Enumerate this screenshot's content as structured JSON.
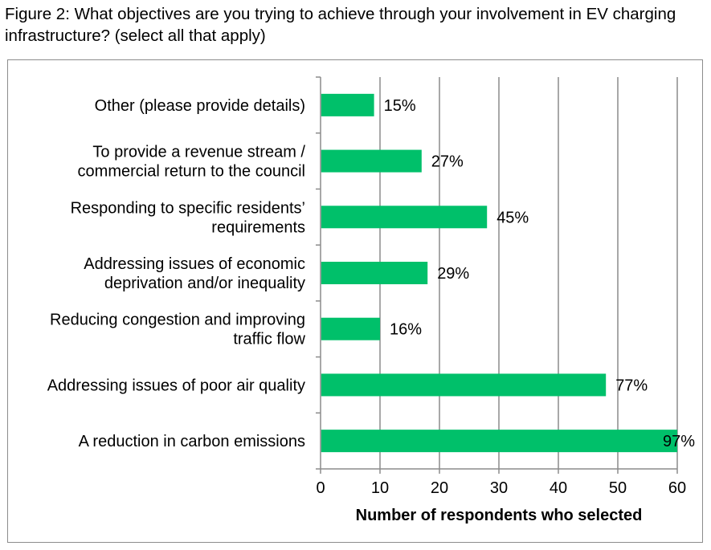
{
  "figure": {
    "title": "Figure 2: What objectives are you trying to achieve through your involvement in EV charging infrastructure? (select all that apply)"
  },
  "chart_data": {
    "type": "bar",
    "orientation": "horizontal",
    "title": "",
    "xlabel": "Number of respondents who selected",
    "ylabel": "",
    "xlim": [
      0,
      60
    ],
    "xticks": [
      0,
      10,
      20,
      30,
      40,
      50,
      60
    ],
    "grid": "vertical",
    "legend": "none",
    "bar_color": "#00c06a",
    "categories": [
      [
        "Other (please provide details)"
      ],
      [
        "To provide a revenue stream /",
        "commercial return to the council"
      ],
      [
        "Responding to specific residents’",
        "requirements"
      ],
      [
        "Addressing issues of economic",
        "deprivation and/or inequality"
      ],
      [
        "Reducing congestion and improving",
        "traffic flow"
      ],
      [
        "Addressing issues of poor air quality"
      ],
      [
        "A reduction in carbon emissions"
      ]
    ],
    "values": [
      9,
      17,
      28,
      18,
      10,
      48,
      60
    ],
    "data_labels": [
      "15%",
      "27%",
      "45%",
      "29%",
      "16%",
      "77%",
      "97%"
    ]
  }
}
